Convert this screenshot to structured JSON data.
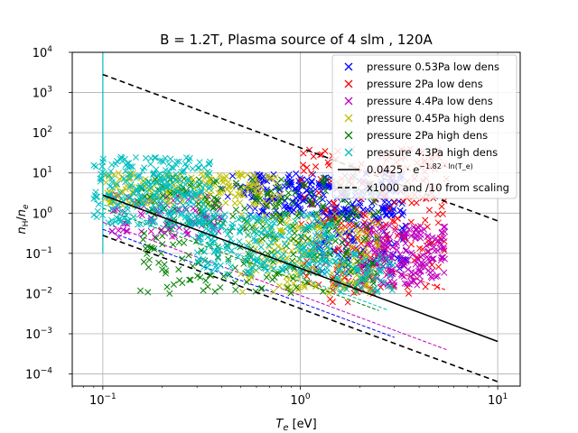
{
  "chart_data": {
    "type": "scatter",
    "title": "B = 1.2T, Plasma source of 4 slm , 120A",
    "xlabel": "T_e [eV]",
    "ylabel": "n_H/n_e",
    "xscale": "log",
    "yscale": "log",
    "xlim": [
      0.07,
      13
    ],
    "ylim": [
      5e-05,
      10000
    ],
    "grid": true,
    "legend_placement": "top-right",
    "x_ticks": [
      {
        "value": 0.1,
        "base": "10",
        "exp": "−1"
      },
      {
        "value": 1,
        "base": "10",
        "exp": "0"
      },
      {
        "value": 10,
        "base": "10",
        "exp": "1"
      }
    ],
    "y_ticks": [
      {
        "value": 0.0001,
        "base": "10",
        "exp": "−4"
      },
      {
        "value": 0.001,
        "base": "10",
        "exp": "−3"
      },
      {
        "value": 0.01,
        "base": "10",
        "exp": "−2"
      },
      {
        "value": 0.1,
        "base": "10",
        "exp": "−1"
      },
      {
        "value": 1,
        "base": "10",
        "exp": "0"
      },
      {
        "value": 10,
        "base": "10",
        "exp": "1"
      },
      {
        "value": 100,
        "base": "10",
        "exp": "2"
      },
      {
        "value": 1000,
        "base": "10",
        "exp": "3"
      },
      {
        "value": 10000,
        "base": "10",
        "exp": "4"
      }
    ],
    "series": [
      {
        "name": "pressure 0.53Pa low dens",
        "color": "#0000ff",
        "marker": "x",
        "clouds": [
          {
            "x": [
              0.55,
              3.3
            ],
            "y": [
              0.8,
              10
            ],
            "count": 220
          },
          {
            "x": [
              1.2,
              3.5
            ],
            "y": [
              0.03,
              1.5
            ],
            "count": 140
          },
          {
            "x": [
              0.4,
              1.5
            ],
            "y": [
              2,
              10
            ],
            "count": 50
          }
        ],
        "fit": {
          "a": 0.006,
          "b": -1.82,
          "x": [
            0.1,
            3.0
          ]
        }
      },
      {
        "name": "pressure 2Pa low dens",
        "color": "#ff0000",
        "marker": "x",
        "clouds": [
          {
            "x": [
              1.0,
              5.5
            ],
            "y": [
              0.01,
              40
            ],
            "count": 260
          },
          {
            "x": [
              1.4,
              1.8
            ],
            "y": [
              0.006,
              0.01
            ],
            "count": 3
          }
        ],
        "fit": {
          "a": 0.27,
          "b": -1.82,
          "x": [
            1.5,
            5.5
          ]
        }
      },
      {
        "name": "pressure 4.4Pa low dens",
        "color": "#bf00bf",
        "marker": "x",
        "clouds": [
          {
            "x": [
              0.11,
              0.4
            ],
            "y": [
              0.25,
              3
            ],
            "count": 100
          },
          {
            "x": [
              2.0,
              5.5
            ],
            "y": [
              0.015,
              0.5
            ],
            "count": 200
          }
        ],
        "fit": {
          "a": 0.009,
          "b": -1.82,
          "x": [
            0.1,
            5.5
          ]
        }
      },
      {
        "name": "pressure 0.45Pa high dens",
        "color": "#bfbf00",
        "marker": "x",
        "clouds": [
          {
            "x": [
              0.1,
              0.8
            ],
            "y": [
              1.5,
              10
            ],
            "count": 200
          },
          {
            "x": [
              0.5,
              2.5
            ],
            "y": [
              0.01,
              1
            ],
            "count": 200
          }
        ],
        "fit": {
          "a": 0.14,
          "b": -1.82,
          "x": [
            0.6,
            2.5
          ]
        }
      },
      {
        "name": "pressure 2Pa high dens",
        "color": "#008000",
        "marker": "x",
        "clouds": [
          {
            "x": [
              0.15,
              2.5
            ],
            "y": [
              0.01,
              8
            ],
            "count": 300
          }
        ],
        "fit": {
          "a": 0.02,
          "b": -1.82,
          "x": [
            0.1,
            2.5
          ]
        }
      },
      {
        "name": "pressure 4.3Pa high dens",
        "color": "#00bfbf",
        "marker": "x",
        "clouds": [
          {
            "x": [
              0.09,
              0.35
            ],
            "y": [
              0.5,
              25
            ],
            "count": 280
          },
          {
            "x": [
              0.3,
              1.5
            ],
            "y": [
              0.03,
              1
            ],
            "count": 240
          },
          {
            "x": [
              1.5,
              3.0
            ],
            "y": [
              0.01,
              0.1
            ],
            "count": 60
          }
        ],
        "fit": {
          "a": 0.025,
          "b": -1.82,
          "x": [
            0.09,
            2.8
          ]
        }
      }
    ],
    "scaling_line": {
      "label_prefix": "0.0425 · e",
      "label_exp": "−1.82 · ln(T_e)",
      "a": 0.0425,
      "b": -1.82,
      "x": [
        0.1,
        10
      ],
      "color": "#000000"
    },
    "scaling_bounds": {
      "label": "x1000 and /10 from scaling",
      "factors": [
        1000,
        0.1
      ],
      "x": [
        0.1,
        10
      ],
      "color": "#000000"
    },
    "vertical_spike": {
      "x": 0.1,
      "y": [
        0.1,
        10000
      ]
    }
  }
}
